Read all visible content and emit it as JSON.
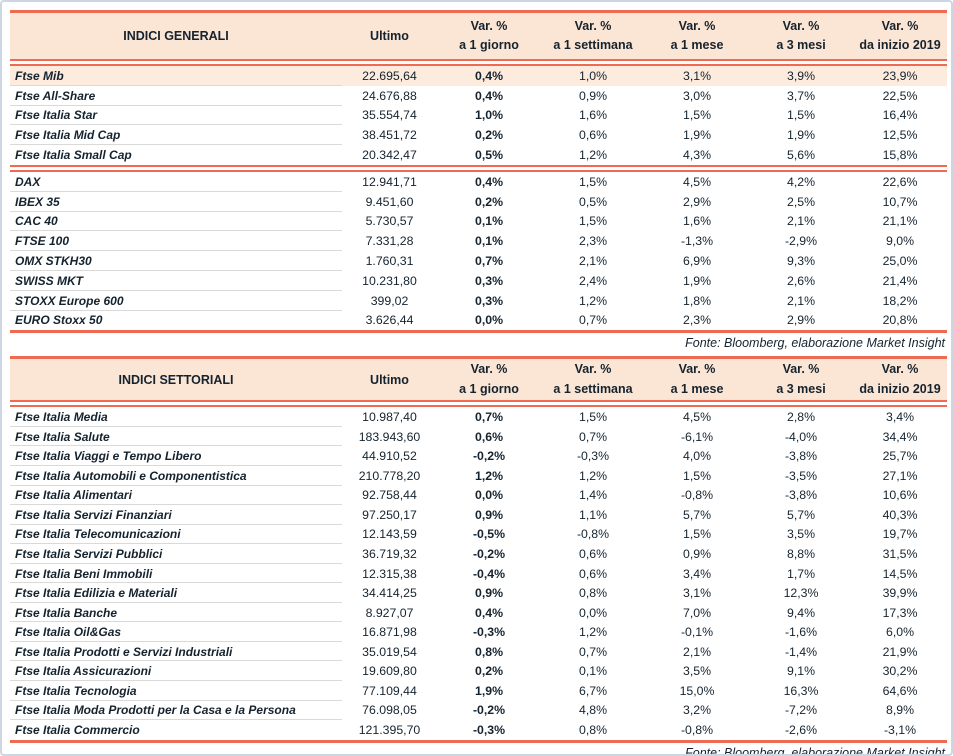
{
  "colors": {
    "accent": "#ee6a52",
    "header_bg": "#fbe5d4",
    "highlight_row_bg": "#fdebdd",
    "text": "#15232f",
    "row_divider": "#d9d9d9",
    "page_border": "#ccd7e3"
  },
  "columns": {
    "ultimo": "Ultimo",
    "var": "Var. %",
    "periods": [
      "a 1 giorno",
      "a 1 settimana",
      "a 1 mese",
      "a 3 mesi",
      "da inizio 2019"
    ]
  },
  "fonte": "Fonte: Bloomberg, elaborazione Market Insight",
  "tables": [
    {
      "title": "INDICI GENERALI",
      "sections": [
        {
          "rows": [
            {
              "label": "Ftse Mib",
              "values": [
                "22.695,64",
                "0,4%",
                "1,0%",
                "3,1%",
                "3,9%",
                "23,9%"
              ],
              "highlight": true
            },
            {
              "label": "Ftse All-Share",
              "values": [
                "24.676,88",
                "0,4%",
                "0,9%",
                "3,0%",
                "3,7%",
                "22,5%"
              ],
              "highlight": false
            },
            {
              "label": "Ftse Italia Star",
              "values": [
                "35.554,74",
                "1,0%",
                "1,6%",
                "1,5%",
                "1,5%",
                "16,4%"
              ],
              "highlight": false
            },
            {
              "label": "Ftse Italia Mid Cap",
              "values": [
                "38.451,72",
                "0,2%",
                "0,6%",
                "1,9%",
                "1,9%",
                "12,5%"
              ],
              "highlight": false
            },
            {
              "label": "Ftse Italia Small Cap",
              "values": [
                "20.342,47",
                "0,5%",
                "1,2%",
                "4,3%",
                "5,6%",
                "15,8%"
              ],
              "highlight": false
            }
          ]
        },
        {
          "rows": [
            {
              "label": "DAX",
              "values": [
                "12.941,71",
                "0,4%",
                "1,5%",
                "4,5%",
                "4,2%",
                "22,6%"
              ],
              "highlight": false
            },
            {
              "label": "IBEX 35",
              "values": [
                "9.451,60",
                "0,2%",
                "0,5%",
                "2,9%",
                "2,5%",
                "10,7%"
              ],
              "highlight": false
            },
            {
              "label": "CAC 40",
              "values": [
                "5.730,57",
                "0,1%",
                "1,5%",
                "1,6%",
                "2,1%",
                "21,1%"
              ],
              "highlight": false
            },
            {
              "label": "FTSE 100",
              "values": [
                "7.331,28",
                "0,1%",
                "2,3%",
                "-1,3%",
                "-2,9%",
                "9,0%"
              ],
              "highlight": false
            },
            {
              "label": "OMX STKH30",
              "values": [
                "1.760,31",
                "0,7%",
                "2,1%",
                "6,9%",
                "9,3%",
                "25,0%"
              ],
              "highlight": false
            },
            {
              "label": "SWISS MKT",
              "values": [
                "10.231,80",
                "0,3%",
                "2,4%",
                "1,9%",
                "2,6%",
                "21,4%"
              ],
              "highlight": false
            },
            {
              "label": "STOXX Europe 600",
              "values": [
                "399,02",
                "0,3%",
                "1,2%",
                "1,8%",
                "2,1%",
                "18,2%"
              ],
              "highlight": false
            },
            {
              "label": "EURO Stoxx 50",
              "values": [
                "3.626,44",
                "0,0%",
                "0,7%",
                "2,3%",
                "2,9%",
                "20,8%"
              ],
              "highlight": false
            }
          ]
        }
      ]
    },
    {
      "title": "INDICI SETTORIALI",
      "sections": [
        {
          "rows": [
            {
              "label": "Ftse Italia Media",
              "values": [
                "10.987,40",
                "0,7%",
                "1,5%",
                "4,5%",
                "2,8%",
                "3,4%"
              ],
              "highlight": false
            },
            {
              "label": "Ftse Italia Salute",
              "values": [
                "183.943,60",
                "0,6%",
                "0,7%",
                "-6,1%",
                "-4,0%",
                "34,4%"
              ],
              "highlight": false
            },
            {
              "label": "Ftse Italia Viaggi e Tempo Libero",
              "values": [
                "44.910,52",
                "-0,2%",
                "-0,3%",
                "4,0%",
                "-3,8%",
                "25,7%"
              ],
              "highlight": false
            },
            {
              "label": "Ftse Italia Automobili e Componentistica",
              "values": [
                "210.778,20",
                "1,2%",
                "1,2%",
                "1,5%",
                "-3,5%",
                "27,1%"
              ],
              "highlight": false
            },
            {
              "label": "Ftse Italia Alimentari",
              "values": [
                "92.758,44",
                "0,0%",
                "1,4%",
                "-0,8%",
                "-3,8%",
                "10,6%"
              ],
              "highlight": false
            },
            {
              "label": "Ftse Italia Servizi Finanziari",
              "values": [
                "97.250,17",
                "0,9%",
                "1,1%",
                "5,7%",
                "5,7%",
                "40,3%"
              ],
              "highlight": false
            },
            {
              "label": "Ftse Italia Telecomunicazioni",
              "values": [
                "12.143,59",
                "-0,5%",
                "-0,8%",
                "1,5%",
                "3,5%",
                "19,7%"
              ],
              "highlight": false
            },
            {
              "label": "Ftse Italia Servizi Pubblici",
              "values": [
                "36.719,32",
                "-0,2%",
                "0,6%",
                "0,9%",
                "8,8%",
                "31,5%"
              ],
              "highlight": false
            },
            {
              "label": "Ftse Italia Beni Immobili",
              "values": [
                "12.315,38",
                "-0,4%",
                "0,6%",
                "3,4%",
                "1,7%",
                "14,5%"
              ],
              "highlight": false
            },
            {
              "label": "Ftse Italia Edilizia e Materiali",
              "values": [
                "34.414,25",
                "0,9%",
                "0,8%",
                "3,1%",
                "12,3%",
                "39,9%"
              ],
              "highlight": false
            },
            {
              "label": "Ftse Italia Banche",
              "values": [
                "8.927,07",
                "0,4%",
                "0,0%",
                "7,0%",
                "9,4%",
                "17,3%"
              ],
              "highlight": false
            },
            {
              "label": "Ftse Italia Oil&Gas",
              "values": [
                "16.871,98",
                "-0,3%",
                "1,2%",
                "-0,1%",
                "-1,6%",
                "6,0%"
              ],
              "highlight": false
            },
            {
              "label": "Ftse Italia Prodotti e Servizi Industriali",
              "values": [
                "35.019,54",
                "0,8%",
                "0,7%",
                "2,1%",
                "-1,4%",
                "21,9%"
              ],
              "highlight": false
            },
            {
              "label": "Ftse Italia Assicurazioni",
              "values": [
                "19.609,80",
                "0,2%",
                "0,1%",
                "3,5%",
                "9,1%",
                "30,2%"
              ],
              "highlight": false
            },
            {
              "label": "Ftse Italia Tecnologia",
              "values": [
                "77.109,44",
                "1,9%",
                "6,7%",
                "15,0%",
                "16,3%",
                "64,6%"
              ],
              "highlight": false
            },
            {
              "label": "Ftse Italia Moda Prodotti per la Casa e la Persona",
              "values": [
                "76.098,05",
                "-0,2%",
                "4,8%",
                "3,2%",
                "-7,2%",
                "8,9%"
              ],
              "highlight": false
            },
            {
              "label": "Ftse Italia Commercio",
              "values": [
                "121.395,70",
                "-0,3%",
                "0,8%",
                "-0,8%",
                "-2,6%",
                "-3,1%"
              ],
              "highlight": false
            }
          ]
        }
      ]
    }
  ]
}
